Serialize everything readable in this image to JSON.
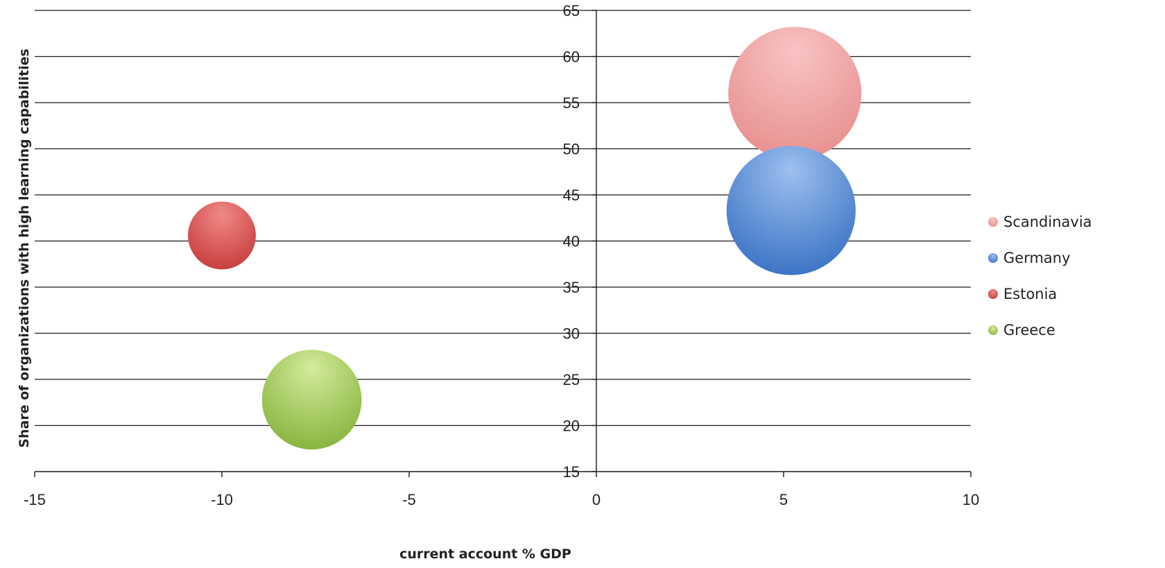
{
  "chart_data": {
    "type": "bubble",
    "title": "",
    "xlabel": "current account % GDP",
    "ylabel": "Share of organizations with high learning capabilities",
    "xlim": [
      -15,
      10
    ],
    "ylim": [
      15,
      65
    ],
    "x_ticks": [
      -15,
      -10,
      -5,
      0,
      5,
      10
    ],
    "y_ticks": [
      15,
      20,
      25,
      30,
      35,
      40,
      45,
      50,
      55,
      60,
      65
    ],
    "grid": "horizontal",
    "legend_position": "right",
    "series": [
      {
        "name": "Scandinavia",
        "x": 5.3,
        "y": 56,
        "size": 100,
        "color": "#e88f8f",
        "light": "#f8c4c4"
      },
      {
        "name": "Germany",
        "x": 5.2,
        "y": 43.3,
        "size": 94,
        "color": "#3a72c4",
        "light": "#9dc0ef"
      },
      {
        "name": "Estonia",
        "x": -10,
        "y": 40.6,
        "size": 26,
        "color": "#c63d3d",
        "light": "#f08a86"
      },
      {
        "name": "Greece",
        "x": -7.6,
        "y": 22.8,
        "size": 56,
        "color": "#86b33c",
        "light": "#d3ec9c"
      }
    ]
  }
}
